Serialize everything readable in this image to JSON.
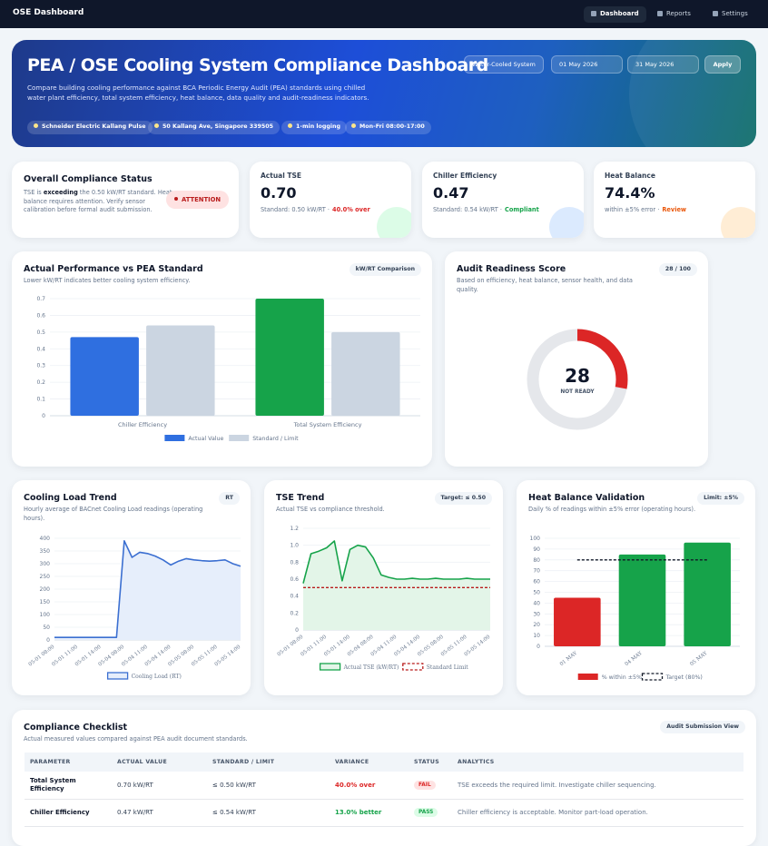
{
  "nav": {
    "brand": "OSE Dashboard",
    "links": [
      "Dashboard",
      "Reports",
      "Settings"
    ]
  },
  "header": {
    "title": "PEA / OSE Cooling System Compliance Dashboard",
    "description": "Compare building cooling performance against BCA Periodic Energy Audit (PEA) standards using chilled water plant efficiency, total system efficiency, heat balance, data quality and audit-readiness indicators.",
    "badges": [
      "Schneider Electric Kallang Pulse",
      "50 Kallang Ave, Singapore 339505",
      "1-min logging",
      "Mon-Fri 08:00-17:00"
    ],
    "system": "Water-Cooled System",
    "start_date": "01 May 2026",
    "end_date": "31 May 2026",
    "apply": "Apply"
  },
  "status": {
    "title": "Overall Compliance Status",
    "text": [
      "TSE is ",
      "exceeding",
      " the 0.50 kW/RT standard. Heat balance requires attention. Verify sensor calibration before formal audit submission."
    ],
    "badge": "ATTENTION"
  },
  "kpis": [
    {
      "label": "Actual TSE",
      "value": "0.70",
      "note": "Standard: 0.50 kW/RT ·",
      "status": "40.0% over",
      "color": "#dc2626",
      "accent": "#dcfce7"
    },
    {
      "label": "Chiller Efficiency",
      "value": "0.47",
      "note": "Standard: 0.54 kW/RT ·",
      "status": "Compliant",
      "color": "#16a34a",
      "accent": "#dbeafe"
    },
    {
      "label": "Heat Balance",
      "value": "74.4%",
      "note": "within ±5% error ·",
      "status": "Review",
      "color": "#ea580c",
      "accent": "#ffedd5"
    }
  ],
  "chart_data": [
    {
      "type": "bar",
      "title": "Actual Performance vs PEA Standard",
      "subtitle": "Lower kW/RT indicates better cooling system efficiency.",
      "badge": "kW/RT Comparison",
      "categories": [
        "Chiller Efficiency",
        "Total System Efficiency"
      ],
      "series": [
        {
          "name": "Actual Value",
          "color": "#2f6fe0",
          "colors": [
            "#2f6fe0",
            "#16a34a"
          ],
          "values": [
            0.47,
            0.7
          ]
        },
        {
          "name": "Standard / Limit",
          "color": "#cbd5e1",
          "values": [
            0.54,
            0.5
          ]
        }
      ],
      "ylim": [
        0,
        0.7
      ],
      "yticks": [
        0,
        0.1,
        0.2,
        0.3,
        0.4,
        0.5,
        0.6,
        0.7
      ],
      "grid": true
    },
    {
      "type": "donut",
      "title": "Audit Readiness Score",
      "subtitle": "Based on efficiency, heat balance, sensor health, and data quality.",
      "badge": "28 / 100",
      "value": 28,
      "max": 100,
      "label": "NOT READY",
      "color": "#dc2626",
      "track_color": "#e5e7eb"
    },
    {
      "type": "line",
      "title": "Cooling Load Trend",
      "subtitle": "Hourly average of BACnet Cooling Load readings (operating hours).",
      "badge": "RT",
      "categories": [
        "05-01 08:00",
        null,
        null,
        "05-01 11:00",
        null,
        null,
        "05-01 14:00",
        null,
        null,
        "05-04 08:00",
        null,
        null,
        "05-04 11:00",
        null,
        null,
        "05-04 14:00",
        null,
        null,
        "05-05 08:00",
        null,
        null,
        "05-05 11:00",
        null,
        null,
        "05-05 14:00"
      ],
      "series": [
        {
          "name": "Cooling Load (RT)",
          "color": "#3b6fd1",
          "fill": "#e6eefb",
          "values": [
            10,
            10,
            10,
            10,
            10,
            10,
            10,
            10,
            10,
            390,
            325,
            345,
            340,
            330,
            315,
            295,
            310,
            320,
            315,
            312,
            310,
            312,
            315,
            300,
            290
          ]
        }
      ],
      "ylim": [
        0,
        400
      ],
      "yticks": [
        0,
        50,
        100,
        150,
        200,
        250,
        300,
        350,
        400
      ],
      "grid": true
    },
    {
      "type": "line",
      "title": "TSE Trend",
      "subtitle": "Actual TSE vs compliance threshold.",
      "badge": "Target: ≤ 0.50",
      "categories": [
        "05-01 08:00",
        null,
        null,
        "05-01 11:00",
        null,
        null,
        "05-01 14:00",
        null,
        null,
        "05-04 08:00",
        null,
        null,
        "05-04 11:00",
        null,
        null,
        "05-04 14:00",
        null,
        null,
        "05-05 08:00",
        null,
        null,
        "05-05 11:00",
        null,
        null,
        "05-05 14:00"
      ],
      "series": [
        {
          "name": "Actual TSE (kW/RT)",
          "color": "#16a34a",
          "fill": "#e3f5e8",
          "values": [
            0.55,
            0.9,
            0.93,
            0.97,
            1.05,
            0.58,
            0.95,
            1.0,
            0.98,
            0.85,
            0.65,
            0.62,
            0.6,
            0.6,
            0.61,
            0.6,
            0.6,
            0.61,
            0.6,
            0.6,
            0.6,
            0.61,
            0.6,
            0.6,
            0.6
          ]
        },
        {
          "name": "Standard Limit",
          "color": "#b91c1c",
          "dash": true,
          "values": [
            0.5,
            0.5,
            0.5,
            0.5,
            0.5,
            0.5,
            0.5,
            0.5,
            0.5,
            0.5,
            0.5,
            0.5,
            0.5,
            0.5,
            0.5,
            0.5,
            0.5,
            0.5,
            0.5,
            0.5,
            0.5,
            0.5,
            0.5,
            0.5,
            0.5
          ]
        }
      ],
      "ylim": [
        0,
        1.2
      ],
      "yticks": [
        0,
        0.2,
        0.4,
        0.6,
        0.8,
        {
          "value": 1,
          "label": "1.0"
        },
        1.2
      ],
      "grid": true
    },
    {
      "type": "bar",
      "title": "Heat Balance Validation",
      "subtitle": "Daily % of readings within ±5% error (operating hours).",
      "badge": "Limit: ±5%",
      "categories": [
        "01 MAY",
        "04 MAY",
        "05 MAY"
      ],
      "series": [
        {
          "name": "% within ±5%",
          "color": "#dc2626",
          "colors": [
            "#dc2626",
            "#16a34a",
            "#16a34a"
          ],
          "values": [
            45,
            85,
            96
          ]
        },
        {
          "name": "Target (80%)",
          "type": "line",
          "color": "#111827",
          "dash": true,
          "values": [
            80,
            80,
            80
          ]
        }
      ],
      "ylim": [
        0,
        100
      ],
      "yticks": [
        0,
        10,
        20,
        30,
        40,
        50,
        60,
        70,
        80,
        90,
        100
      ],
      "grid": true
    }
  ],
  "table": {
    "title": "Compliance Checklist",
    "subtitle": "Actual measured values compared against PEA audit document standards.",
    "button": "Audit Submission View",
    "headers": [
      "PARAMETER",
      "ACTUAL VALUE",
      "STANDARD / LIMIT",
      "VARIANCE",
      "STATUS",
      "ANALYTICS"
    ],
    "rows": [
      {
        "parameter": "Total System Efficiency",
        "actual": "0.70 kW/RT",
        "standard": "≤ 0.50 kW/RT",
        "variance": "40.0% over",
        "status": "FAIL",
        "analytics": "TSE exceeds the required limit. Investigate chiller sequencing.",
        "color": "#dc2626",
        "pill": "#fee2e2"
      },
      {
        "parameter": "Chiller Efficiency",
        "actual": "0.47 kW/RT",
        "standard": "≤ 0.54 kW/RT",
        "variance": "13.0% better",
        "status": "PASS",
        "analytics": "Chiller efficiency is acceptable. Monitor part-load operation.",
        "color": "#16a34a",
        "pill": "#dcfce7"
      }
    ]
  }
}
